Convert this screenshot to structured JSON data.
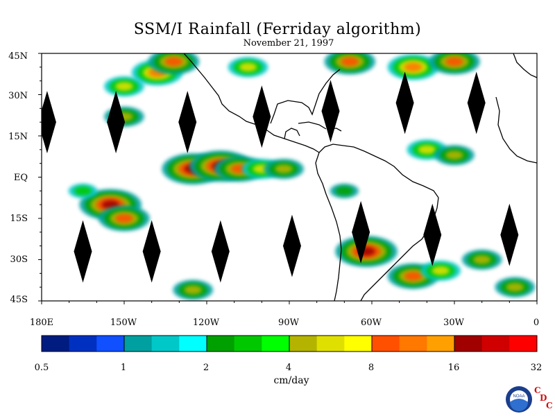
{
  "title": "SSM/I Rainfall (Ferriday algorithm)",
  "subtitle": "November 21, 1997",
  "map": {
    "y_ticks": [
      "45N",
      "30N",
      "15N",
      "EQ",
      "15S",
      "30S",
      "45S"
    ],
    "x_ticks": [
      "180E",
      "150W",
      "120W",
      "90W",
      "60W",
      "30W",
      "0"
    ]
  },
  "colorbar": {
    "unit": "cm/day",
    "tick_labels": [
      "0.5",
      "1",
      "2",
      "4",
      "8",
      "16",
      "32"
    ],
    "colors": [
      "#001c80",
      "#0030c0",
      "#1050ff",
      "#00a0a0",
      "#00c8c8",
      "#00ffff",
      "#00a000",
      "#00c800",
      "#00ff00",
      "#b4b400",
      "#e0e000",
      "#ffff00",
      "#ff5000",
      "#ff7800",
      "#ffa000",
      "#a00000",
      "#d00000",
      "#ff0000"
    ]
  },
  "logo": {
    "text": "NOAA",
    "cdc_letters": [
      "C",
      "D",
      "C"
    ]
  },
  "chart_data": {
    "type": "heatmap",
    "title": "SSM/I Rainfall (Ferriday algorithm)",
    "subtitle": "November 21, 1997",
    "x_range": [
      -180,
      0
    ],
    "y_range": [
      -45,
      45
    ],
    "colorbar_unit": "cm/day",
    "colorbar_scale": "log2",
    "colorbar_range": [
      0.5,
      32
    ],
    "rain_areas": [
      {
        "lon": -125,
        "lat": 3,
        "value": 16
      },
      {
        "lon": -115,
        "lat": 4,
        "value": 20
      },
      {
        "lon": -108,
        "lat": 3,
        "value": 8
      },
      {
        "lon": -100,
        "lat": 3,
        "value": 6
      },
      {
        "lon": -92,
        "lat": 3,
        "value": 5
      },
      {
        "lon": -155,
        "lat": -10,
        "value": 18
      },
      {
        "lon": -150,
        "lat": -15,
        "value": 10
      },
      {
        "lon": -165,
        "lat": -5,
        "value": 3
      },
      {
        "lon": -138,
        "lat": 38,
        "value": 12
      },
      {
        "lon": -132,
        "lat": 42,
        "value": 8
      },
      {
        "lon": -150,
        "lat": 33,
        "value": 6
      },
      {
        "lon": -150,
        "lat": 22,
        "value": 4
      },
      {
        "lon": -105,
        "lat": 40,
        "value": 6
      },
      {
        "lon": -68,
        "lat": 42,
        "value": 10
      },
      {
        "lon": -45,
        "lat": 40,
        "value": 12
      },
      {
        "lon": -30,
        "lat": 42,
        "value": 8
      },
      {
        "lon": -40,
        "lat": 10,
        "value": 6
      },
      {
        "lon": -30,
        "lat": 8,
        "value": 4
      },
      {
        "lon": -62,
        "lat": -27,
        "value": 18
      },
      {
        "lon": -45,
        "lat": -36,
        "value": 10
      },
      {
        "lon": -35,
        "lat": -34,
        "value": 6
      },
      {
        "lon": -20,
        "lat": -30,
        "value": 5
      },
      {
        "lon": -8,
        "lat": -40,
        "value": 5
      },
      {
        "lon": -125,
        "lat": -41,
        "value": 4
      },
      {
        "lon": -70,
        "lat": -5,
        "value": 2
      }
    ],
    "masked_diamonds": [
      {
        "lon": -178,
        "lat": 20
      },
      {
        "lon": -153,
        "lat": 20
      },
      {
        "lon": -127,
        "lat": 20
      },
      {
        "lon": -100,
        "lat": 22
      },
      {
        "lon": -75,
        "lat": 24
      },
      {
        "lon": -48,
        "lat": 27
      },
      {
        "lon": -22,
        "lat": 27
      },
      {
        "lon": -165,
        "lat": -27
      },
      {
        "lon": -140,
        "lat": -27
      },
      {
        "lon": -115,
        "lat": -27
      },
      {
        "lon": -89,
        "lat": -25
      },
      {
        "lon": -64,
        "lat": -20
      },
      {
        "lon": -38,
        "lat": -21
      },
      {
        "lon": -10,
        "lat": -21
      }
    ]
  }
}
